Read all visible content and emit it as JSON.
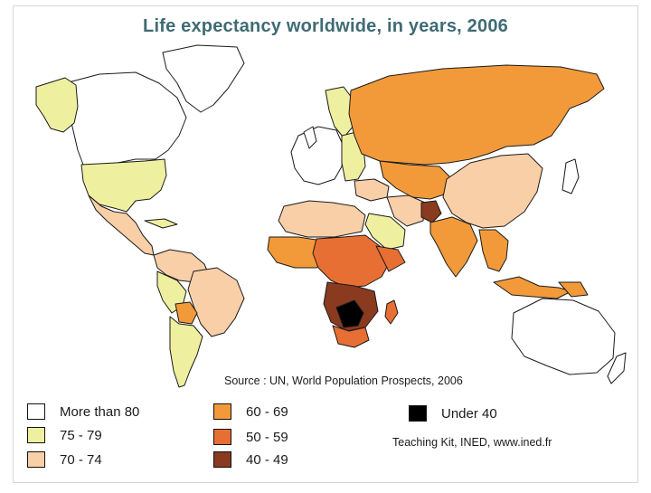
{
  "title": "Life expectancy worldwide, in years, 2006",
  "source": "Source : UN, World Population Prospects, 2006",
  "credit": "Teaching Kit, INED, www.ined.fr",
  "legend": [
    {
      "label": "More than 80",
      "color": "#ffffff"
    },
    {
      "label": "75 - 79",
      "color": "#eef0a0"
    },
    {
      "label": "70 - 74",
      "color": "#f9cfa8"
    },
    {
      "label": "60 - 69",
      "color": "#f29a3a"
    },
    {
      "label": "50 - 59",
      "color": "#e86f33"
    },
    {
      "label": "40 - 49",
      "color": "#8a3a1f"
    },
    {
      "label": "Under 40",
      "color": "#000000"
    }
  ],
  "colors": {
    "title": "#3f6b74",
    "outline": "#1a1a1a"
  }
}
